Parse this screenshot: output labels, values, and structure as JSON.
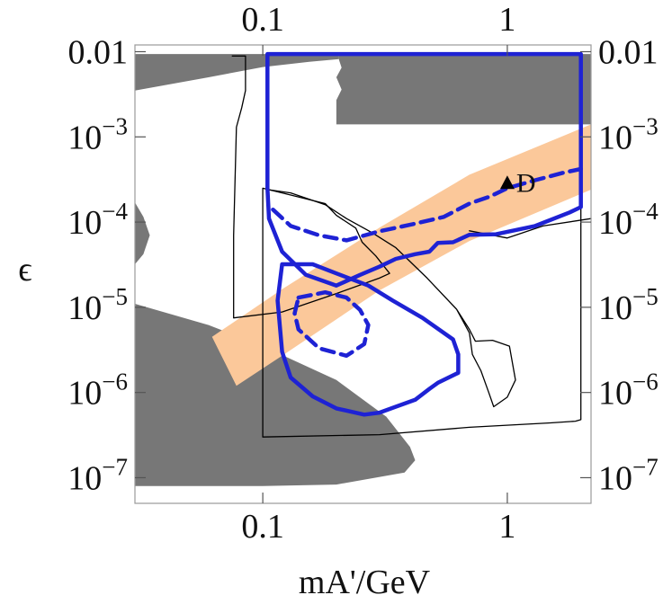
{
  "chart_data": {
    "type": "area",
    "title": "",
    "xlabel": "mA'/GeV",
    "ylabel": "ϵ",
    "xscale": "log",
    "yscale": "log",
    "xlim": [
      0.03,
      2.2
    ],
    "ylim": [
      5e-08,
      0.012
    ],
    "grid": false,
    "x_ticks": [
      {
        "value": 0.1,
        "label": "0.1"
      },
      {
        "value": 1,
        "label": "1"
      }
    ],
    "y_ticks": [
      {
        "value": 0.01,
        "base": "0.01",
        "exp": ""
      },
      {
        "value": 0.001,
        "base": "10",
        "exp": "−3"
      },
      {
        "value": 0.0001,
        "base": "10",
        "exp": "−4"
      },
      {
        "value": 1e-05,
        "base": "10",
        "exp": "−5"
      },
      {
        "value": 1e-06,
        "base": "10",
        "exp": "−6"
      },
      {
        "value": 1e-07,
        "base": "10",
        "exp": "−7"
      }
    ],
    "colors": {
      "excluded": "#777777",
      "band": "#fbc89a",
      "reach": "#1e22d4",
      "outline": "#000000"
    },
    "regions": [
      {
        "id": "excluded-top-left",
        "kind": "gray",
        "points": [
          [
            0.03,
            0.0094
          ],
          [
            0.205,
            0.0094
          ],
          [
            0.205,
            0.0082
          ],
          [
            0.155,
            0.0076
          ],
          [
            0.1,
            0.0066
          ],
          [
            0.06,
            0.005
          ],
          [
            0.03,
            0.0035
          ]
        ]
      },
      {
        "id": "excluded-top-right",
        "kind": "gray",
        "points": [
          [
            0.205,
            0.0094
          ],
          [
            2.2,
            0.0094
          ],
          [
            2.2,
            0.0014
          ],
          [
            0.2,
            0.0014
          ],
          [
            0.2,
            0.0027
          ],
          [
            0.21,
            0.0036
          ],
          [
            0.2,
            0.005
          ],
          [
            0.21,
            0.0065
          ],
          [
            0.205,
            0.008
          ]
        ]
      },
      {
        "id": "excluded-left-bump",
        "kind": "gray",
        "points": [
          [
            0.03,
            0.00017
          ],
          [
            0.0325,
            0.000115
          ],
          [
            0.0345,
            7e-05
          ],
          [
            0.0325,
            4.2e-05
          ],
          [
            0.03,
            3.2e-05
          ]
        ]
      },
      {
        "id": "excluded-bottom",
        "kind": "gray",
        "points": [
          [
            0.03,
            1.1e-05
          ],
          [
            0.06,
            6.2e-06
          ],
          [
            0.1,
            3.5e-06
          ],
          [
            0.2,
            1.4e-06
          ],
          [
            0.32,
            5.2e-07
          ],
          [
            0.4,
            2.3e-07
          ],
          [
            0.42,
            1.6e-07
          ],
          [
            0.38,
            1.15e-07
          ],
          [
            0.2,
            8.3e-08
          ],
          [
            0.1,
            8e-08
          ],
          [
            0.03,
            8e-08
          ]
        ]
      },
      {
        "id": "preferred-band",
        "kind": "band",
        "points": [
          [
            0.062,
            4.5e-06
          ],
          [
            0.12,
            1.63e-05
          ],
          [
            0.3,
            8.6e-05
          ],
          [
            0.7,
            0.00036
          ],
          [
            2.2,
            0.0014
          ],
          [
            2.2,
            0.00024
          ],
          [
            0.7,
            6e-05
          ],
          [
            0.3,
            1.58e-05
          ],
          [
            0.12,
            2.7e-06
          ],
          [
            0.078,
            1.2e-06
          ]
        ]
      }
    ],
    "curves": [
      {
        "id": "thin-box-left",
        "style": "thin",
        "points": [
          [
            0.075,
            0.0089
          ],
          [
            0.085,
            0.0089
          ],
          [
            0.085,
            0.0035
          ],
          [
            0.082,
            0.0022
          ],
          [
            0.078,
            0.0013
          ],
          [
            0.076,
            7e-05
          ],
          [
            0.076,
            7.5e-06
          ],
          [
            0.12,
            8.8e-06
          ],
          [
            0.2,
            1.45e-05
          ],
          [
            0.3,
            2.2e-05
          ],
          [
            0.33,
            2.5e-05
          ],
          [
            0.29,
            4e-05
          ],
          [
            0.255,
            5.8e-05
          ],
          [
            0.24,
            8.5e-05
          ],
          [
            0.2,
            0.00012
          ],
          [
            0.18,
            0.000165
          ],
          [
            0.12,
            0.00022
          ],
          [
            0.1,
            0.00025
          ],
          [
            0.1,
            3e-07
          ],
          [
            0.3,
            3.2e-07
          ],
          [
            0.7,
            3.9e-07
          ],
          [
            1.5,
            4.4e-07
          ],
          [
            1.9,
            4.6e-07
          ],
          [
            2.0,
            4.8e-07
          ],
          [
            2.0,
            0.006
          ]
        ]
      },
      {
        "id": "thin-outer",
        "style": "thin",
        "points": [
          [
            0.105,
            0.00024
          ],
          [
            0.13,
            0.00022
          ],
          [
            0.18,
            0.00016
          ],
          [
            0.22,
            0.00011
          ],
          [
            0.28,
            7.5e-05
          ],
          [
            0.35,
            5e-05
          ],
          [
            0.47,
            2.2e-05
          ],
          [
            0.62,
            9.5e-06
          ],
          [
            0.7,
            5.5e-06
          ],
          [
            0.74,
            4e-06
          ],
          [
            0.87,
            4.1e-06
          ],
          [
            1.02,
            3.5e-06
          ],
          [
            1.05,
            2.2e-06
          ],
          [
            1.08,
            1.4e-06
          ],
          [
            1.0,
            8.8e-07
          ],
          [
            0.88,
            6.8e-07
          ],
          [
            0.84,
            1e-06
          ],
          [
            0.78,
            1.8e-06
          ],
          [
            0.72,
            2.8e-06
          ],
          [
            0.7,
            5e-06
          ],
          [
            0.62,
            9.5e-06
          ]
        ]
      },
      {
        "id": "thin-right",
        "style": "thin",
        "points": [
          [
            0.7,
            7.9e-05
          ],
          [
            1.0,
            6.5e-05
          ],
          [
            1.4,
            9e-05
          ],
          [
            2.2,
            0.00011
          ]
        ]
      },
      {
        "id": "reach-solid-large",
        "style": "solid",
        "points": [
          [
            0.1045,
            0.0094
          ],
          [
            2.0,
            0.0094
          ],
          [
            2.0,
            0.00015
          ],
          [
            1.8,
            0.00013
          ],
          [
            1.3,
            9e-05
          ],
          [
            0.9,
            7.2e-05
          ],
          [
            0.7,
            7.1e-05
          ],
          [
            0.6,
            5.8e-05
          ],
          [
            0.52,
            5.7e-05
          ],
          [
            0.48,
            4.5e-05
          ],
          [
            0.42,
            4.2e-05
          ],
          [
            0.35,
            3.7e-05
          ],
          [
            0.3,
            3e-05
          ],
          [
            0.25,
            2.4e-05
          ],
          [
            0.2,
            1.8e-05
          ],
          [
            0.15,
            2.4e-05
          ],
          [
            0.12,
            4.5e-05
          ],
          [
            0.106,
            0.00011
          ],
          [
            0.1045,
            0.00025
          ],
          [
            0.1045,
            0.0094
          ]
        ]
      },
      {
        "id": "reach-solid-inner",
        "style": "solid",
        "points": [
          [
            0.12,
            3.2e-05
          ],
          [
            0.16,
            3.2e-05
          ],
          [
            0.2,
            2.5e-05
          ],
          [
            0.27,
            1.8e-05
          ],
          [
            0.34,
            1.2e-05
          ],
          [
            0.45,
            7.5e-06
          ],
          [
            0.6,
            4.2e-06
          ],
          [
            0.63,
            2.8e-06
          ],
          [
            0.63,
            1.7e-06
          ],
          [
            0.52,
            1.3e-06
          ],
          [
            0.48,
            1.1e-06
          ],
          [
            0.42,
            8.2e-07
          ],
          [
            0.35,
            6.8e-07
          ],
          [
            0.3,
            5.8e-07
          ],
          [
            0.26,
            5.5e-07
          ],
          [
            0.2,
            6.5e-07
          ],
          [
            0.16,
            9e-07
          ],
          [
            0.13,
            1.5e-06
          ],
          [
            0.12,
            3e-06
          ],
          [
            0.115,
            1.2e-05
          ],
          [
            0.12,
            3.2e-05
          ]
        ]
      },
      {
        "id": "reach-dashed-upper",
        "style": "dashed",
        "points": [
          [
            0.11,
            0.00014
          ],
          [
            0.13,
            9e-05
          ],
          [
            0.17,
            7e-05
          ],
          [
            0.22,
            6.1e-05
          ],
          [
            0.3,
            7.8e-05
          ],
          [
            0.4,
            9.3e-05
          ],
          [
            0.55,
            0.000115
          ],
          [
            0.7,
            0.000165
          ],
          [
            0.85,
            0.0002
          ],
          [
            1.0,
            0.00025
          ],
          [
            1.3,
            0.00031
          ],
          [
            1.7,
            0.00038
          ],
          [
            2.0,
            0.00042
          ]
        ]
      },
      {
        "id": "reach-dashed-inner",
        "style": "dashed",
        "points": [
          [
            0.14,
            1.3e-05
          ],
          [
            0.18,
            1.5e-05
          ],
          [
            0.22,
            1.3e-05
          ],
          [
            0.25,
            9.3e-06
          ],
          [
            0.27,
            6.2e-06
          ],
          [
            0.26,
            3.7e-06
          ],
          [
            0.22,
            2.7e-06
          ],
          [
            0.17,
            3.3e-06
          ],
          [
            0.14,
            5.5e-06
          ],
          [
            0.135,
            8.5e-06
          ],
          [
            0.14,
            1.3e-05
          ]
        ]
      }
    ],
    "annotations": [
      {
        "text": "D",
        "x": 1.0,
        "y": 0.00029,
        "marker": "triangle"
      }
    ]
  }
}
